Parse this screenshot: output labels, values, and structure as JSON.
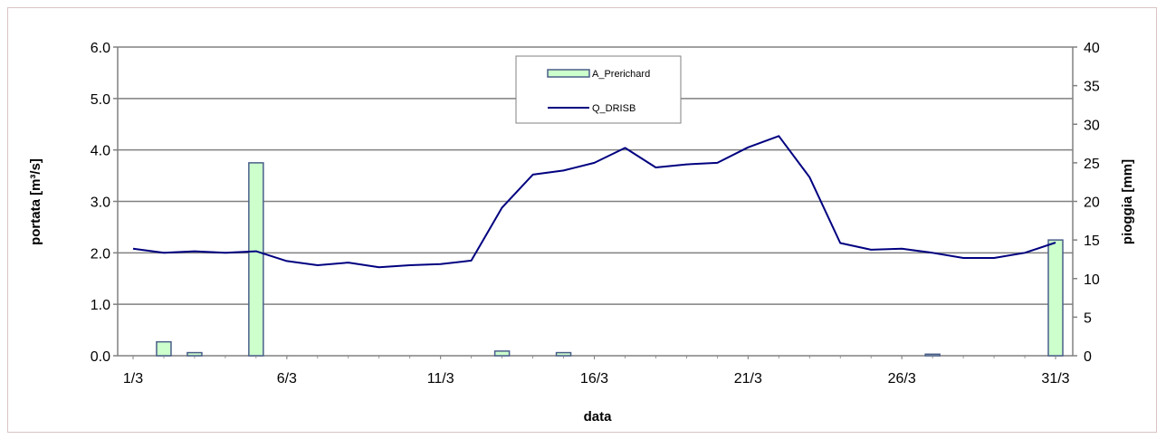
{
  "chart_data": {
    "type": "bar+line",
    "xlabel": "data",
    "ylabel_left": "portata [m³/s]",
    "ylabel_right": "pioggia [mm]",
    "ylim_left": [
      0,
      6
    ],
    "ylim_right": [
      0,
      40
    ],
    "left_ticks": [
      "0.0",
      "1.0",
      "2.0",
      "3.0",
      "4.0",
      "5.0",
      "6.0"
    ],
    "right_ticks": [
      "0",
      "5",
      "10",
      "15",
      "20",
      "25",
      "30",
      "35",
      "40"
    ],
    "x_ticks": [
      "1/3",
      "6/3",
      "11/3",
      "16/3",
      "21/3",
      "26/3",
      "31/3"
    ],
    "grid": "horizontal",
    "legend_position": "top-center",
    "colors": {
      "bar_fill": "#ccffcc",
      "bar_edge": "#4a5e8a",
      "line": "#000080",
      "grid": "#808080"
    },
    "series": [
      {
        "name": "A_Prerichard",
        "type": "bar",
        "axis": "right",
        "x": [
          2,
          3,
          5,
          13,
          15,
          27,
          31
        ],
        "values": [
          1.8,
          0.4,
          25,
          0.6,
          0.4,
          0.2,
          15
        ]
      },
      {
        "name": "Q_DRISB",
        "type": "line",
        "axis": "left",
        "x": [
          1,
          2,
          3,
          4,
          5,
          6,
          7,
          8,
          9,
          10,
          11,
          12,
          13,
          14,
          15,
          16,
          17,
          18,
          19,
          20,
          21,
          22,
          23,
          24,
          25,
          26,
          27,
          28,
          29,
          30,
          31
        ],
        "values": [
          2.08,
          2.0,
          2.03,
          2.0,
          2.03,
          1.84,
          1.76,
          1.81,
          1.72,
          1.76,
          1.78,
          1.85,
          2.88,
          3.52,
          3.6,
          3.75,
          4.04,
          3.66,
          3.72,
          3.75,
          4.05,
          4.27,
          3.47,
          2.19,
          2.06,
          2.08,
          2.0,
          1.9,
          1.9,
          2.0,
          2.2
        ]
      }
    ]
  }
}
